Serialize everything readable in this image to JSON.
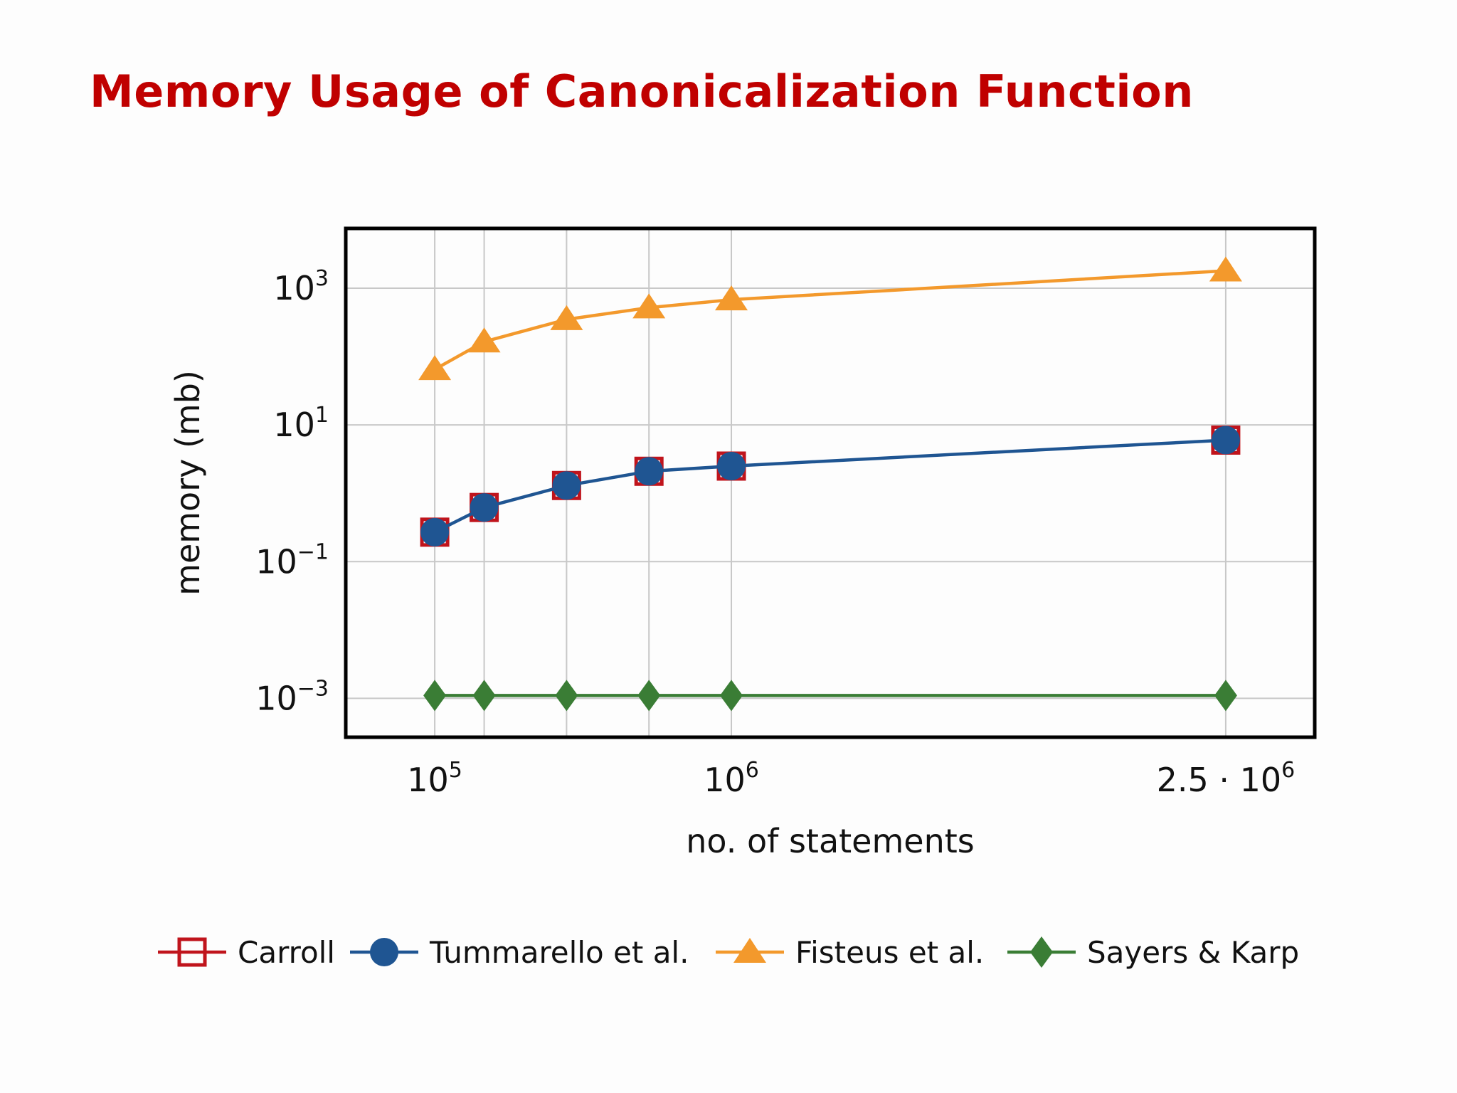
{
  "slide": {
    "title": "Memory Usage of Canonicalization Function"
  },
  "chart_data": {
    "type": "line",
    "xlabel": "no. of statements",
    "ylabel": "memory (mb)",
    "x_scale": "linear",
    "y_scale": "log",
    "xlim": [
      -170000,
      2770000
    ],
    "ylim": [
      0.00027,
      7500
    ],
    "x_ticks": [
      {
        "value": 100000,
        "base": "10",
        "exp": "5"
      },
      {
        "value": 1000000,
        "base": "10",
        "exp": "6"
      },
      {
        "value": 2500000,
        "base": "2.5 · 10",
        "exp": "6"
      }
    ],
    "y_ticks": [
      {
        "value": 0.001,
        "base": "10",
        "exp": "−3"
      },
      {
        "value": 0.1,
        "base": "10",
        "exp": "−1"
      },
      {
        "value": 10,
        "base": "10",
        "exp": "1"
      },
      {
        "value": 1000,
        "base": "10",
        "exp": "3"
      }
    ],
    "grid": true,
    "legend_position": "bottom",
    "x": [
      100000,
      250000,
      500000,
      750000,
      1000000,
      2500000
    ],
    "series": [
      {
        "name": "Carroll",
        "marker": "square-open",
        "color": "#c0141c",
        "values": [
          0.27,
          0.62,
          1.3,
          2.1,
          2.5,
          6.0
        ]
      },
      {
        "name": "Tummarello et al.",
        "marker": "circle",
        "color": "#1f5592",
        "values": [
          0.27,
          0.62,
          1.3,
          2.1,
          2.5,
          6.0
        ]
      },
      {
        "name": "Fisteus et al.",
        "marker": "triangle",
        "color": "#f3992c",
        "values": [
          65,
          165,
          350,
          520,
          680,
          1800
        ]
      },
      {
        "name": "Sayers & Karp",
        "marker": "diamond",
        "color": "#3a7d35",
        "values": [
          0.0011,
          0.0011,
          0.0011,
          0.0011,
          0.0011,
          0.0011
        ]
      }
    ]
  }
}
